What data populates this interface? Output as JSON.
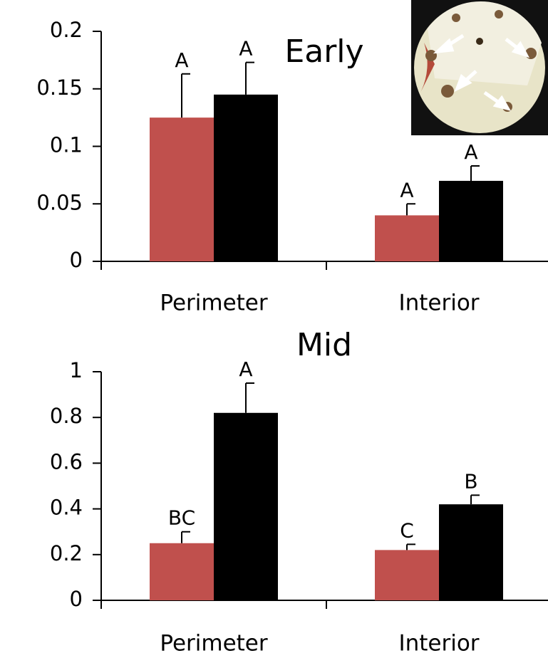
{
  "chart_data": [
    {
      "type": "bar",
      "title": "Early",
      "categories": [
        "Perimeter",
        "Interior"
      ],
      "series": [
        {
          "color": "#c0504d",
          "values": [
            0.125,
            0.04
          ],
          "errors": [
            0.038,
            0.01
          ],
          "labels": [
            "A",
            "A"
          ]
        },
        {
          "color": "#000000",
          "values": [
            0.145,
            0.07
          ],
          "errors": [
            0.028,
            0.013
          ],
          "labels": [
            "A",
            "A"
          ]
        }
      ],
      "ylim": [
        0,
        0.2
      ],
      "yticks": [
        0,
        0.05,
        0.1,
        0.15,
        0.2
      ],
      "grid": false
    },
    {
      "type": "bar",
      "title": "Mid",
      "categories": [
        "Perimeter",
        "Interior"
      ],
      "series": [
        {
          "color": "#c0504d",
          "values": [
            0.25,
            0.22
          ],
          "errors": [
            0.05,
            0.025
          ],
          "labels": [
            "BC",
            "C"
          ]
        },
        {
          "color": "#000000",
          "values": [
            0.82,
            0.42
          ],
          "errors": [
            0.13,
            0.04
          ],
          "labels": [
            "A",
            "B"
          ]
        }
      ],
      "ylim": [
        0,
        1
      ],
      "yticks": [
        0,
        0.2,
        0.4,
        0.6,
        0.8,
        1
      ],
      "grid": false
    }
  ]
}
